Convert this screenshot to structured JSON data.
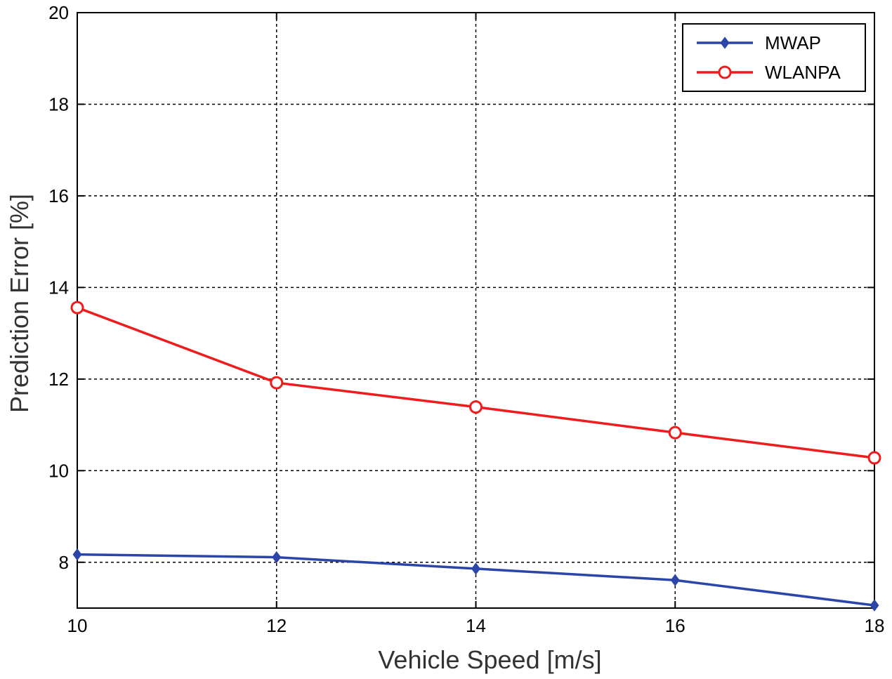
{
  "chart_data": {
    "type": "line",
    "title": "",
    "xlabel": "Vehicle Speed [m/s]",
    "ylabel": "Prediction Error [%]",
    "x": [
      10,
      12,
      14,
      16,
      18
    ],
    "xlim": [
      10,
      18
    ],
    "ylim": [
      7,
      20
    ],
    "xticks": [
      "10",
      "12",
      "14",
      "16",
      "18"
    ],
    "yticks": [
      "8",
      "10",
      "12",
      "14",
      "16",
      "18",
      "20"
    ],
    "grid": true,
    "legend_position": "top-right",
    "series": [
      {
        "name": "MWAP",
        "color": "#2b45a8",
        "marker": "diamond",
        "values": [
          8.17,
          8.11,
          7.86,
          7.61,
          7.06
        ]
      },
      {
        "name": "WLANPA",
        "color": "#ee1c1c",
        "marker": "circle",
        "values": [
          13.56,
          11.92,
          11.39,
          10.83,
          10.28
        ]
      }
    ]
  }
}
